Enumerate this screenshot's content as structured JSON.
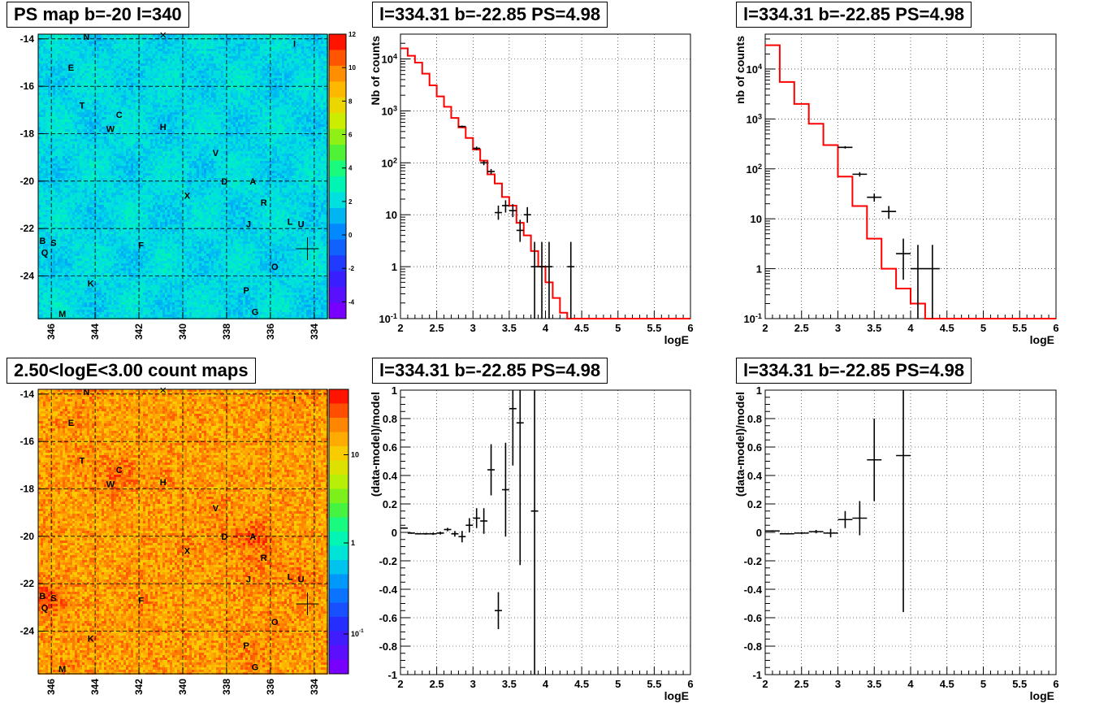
{
  "panels": {
    "map_top_title": "PS map b=-20 l=340",
    "map_bottom_title": "2.50<logE<3.00 count maps",
    "spec_left_title": "l=334.31 b=-22.85 PS=4.98",
    "spec_right_title": "l=334.31 b=-22.85 PS=4.98",
    "res_left_title": "l=334.31 b=-22.85 PS=4.98",
    "res_right_title": "l=334.31 b=-22.85 PS=4.98"
  },
  "maps": {
    "x_ticks": [
      "346",
      "344",
      "342",
      "340",
      "338",
      "336",
      "334"
    ],
    "y_ticks": [
      "-14",
      "-16",
      "-18",
      "-20",
      "-22",
      "-24"
    ],
    "top_colorbar_ticks": [
      "12",
      "10",
      "8",
      "6",
      "4",
      "2",
      "0",
      "-2",
      "-4"
    ],
    "bottom_colorbar_ticks": [
      "10",
      "1",
      "10-1"
    ],
    "sources": [
      {
        "name": "N",
        "l": 344.4,
        "b": -13.9
      },
      {
        "name": "I",
        "l": 334.9,
        "b": -14.2
      },
      {
        "name": "E",
        "l": 345.1,
        "b": -15.2
      },
      {
        "name": "T",
        "l": 344.6,
        "b": -16.8
      },
      {
        "name": "C",
        "l": 342.9,
        "b": -17.2
      },
      {
        "name": "W",
        "l": 343.3,
        "b": -17.8
      },
      {
        "name": "H",
        "l": 340.9,
        "b": -17.7
      },
      {
        "name": "V",
        "l": 338.5,
        "b": -18.8
      },
      {
        "name": "D",
        "l": 338.1,
        "b": -20.0
      },
      {
        "name": "A",
        "l": 336.8,
        "b": -20.0
      },
      {
        "name": "X",
        "l": 339.8,
        "b": -20.6
      },
      {
        "name": "R",
        "l": 336.3,
        "b": -20.9
      },
      {
        "name": "J",
        "l": 337.0,
        "b": -21.8
      },
      {
        "name": "L",
        "l": 335.1,
        "b": -21.7
      },
      {
        "name": "U",
        "l": 334.6,
        "b": -21.8
      },
      {
        "name": "B",
        "l": 346.4,
        "b": -22.5
      },
      {
        "name": "S",
        "l": 345.9,
        "b": -22.6
      },
      {
        "name": "F",
        "l": 341.9,
        "b": -22.7
      },
      {
        "name": "Q",
        "l": 346.3,
        "b": -23.0
      },
      {
        "name": "O",
        "l": 335.8,
        "b": -23.6
      },
      {
        "name": "K",
        "l": 344.2,
        "b": -24.3
      },
      {
        "name": "P",
        "l": 337.1,
        "b": -24.6
      },
      {
        "name": "G",
        "l": 336.7,
        "b": -25.5
      },
      {
        "name": "M",
        "l": 345.5,
        "b": -25.6
      }
    ]
  },
  "chart_data": [
    {
      "type": "heatmap",
      "title": "PS map b=-20 l=340",
      "xlabel": "l",
      "ylabel": "b",
      "xlim": [
        346.6,
        333.4
      ],
      "ylim": [
        -25.8,
        -13.8
      ],
      "zlim": [
        -5,
        12
      ],
      "colorbar_ticks": [
        12,
        10,
        8,
        6,
        4,
        2,
        0,
        -2,
        -4
      ],
      "marker": {
        "l": 334.31,
        "b": -22.85
      }
    },
    {
      "type": "bar",
      "subtype": "step-histogram-with-errorbars",
      "title": "l=334.31 b=-22.85 PS=4.98",
      "xlabel": "logE",
      "ylabel": "Nb of counts",
      "xlim": [
        2,
        6
      ],
      "ylim": [
        0.1,
        30000
      ],
      "yscale": "log",
      "x_ticks": [
        "2",
        "2.5",
        "3",
        "3.5",
        "4",
        "4.5",
        "5",
        "5.5",
        "6"
      ],
      "y_ticks": [
        "10-1",
        "1",
        "10",
        "102",
        "103",
        "104"
      ],
      "grid": true,
      "model_color": "#ff0000",
      "model_edges": [
        2,
        2.1,
        2.2,
        2.3,
        2.4,
        2.5,
        2.6,
        2.7,
        2.8,
        2.9,
        3.0,
        3.1,
        3.2,
        3.3,
        3.4,
        3.5,
        3.6,
        3.7,
        3.8,
        3.9,
        4.0,
        4.1,
        4.2,
        4.3,
        6.0
      ],
      "model_values": [
        16000,
        11500,
        8500,
        5200,
        3100,
        1900,
        1200,
        730,
        480,
        300,
        180,
        110,
        60,
        40,
        22,
        15,
        7,
        4,
        2,
        1,
        0.5,
        0.25,
        0.13,
        0.1
      ],
      "data_points": [
        {
          "x": 2.85,
          "y": 500,
          "xerr": 0.05,
          "ylo": 480,
          "yhi": 520
        },
        {
          "x": 3.05,
          "y": 190,
          "xerr": 0.05,
          "ylo": 175,
          "yhi": 205
        },
        {
          "x": 3.15,
          "y": 100,
          "xerr": 0.05,
          "ylo": 90,
          "yhi": 110
        },
        {
          "x": 3.25,
          "y": 68,
          "xerr": 0.05,
          "ylo": 60,
          "yhi": 76
        },
        {
          "x": 3.35,
          "y": 11,
          "xerr": 0.05,
          "ylo": 8,
          "yhi": 15
        },
        {
          "x": 3.45,
          "y": 15,
          "xerr": 0.05,
          "ylo": 11,
          "yhi": 19
        },
        {
          "x": 3.55,
          "y": 12,
          "xerr": 0.05,
          "ylo": 9,
          "yhi": 16
        },
        {
          "x": 3.65,
          "y": 5,
          "xerr": 0.05,
          "ylo": 3,
          "yhi": 8
        },
        {
          "x": 3.75,
          "y": 10,
          "xerr": 0.05,
          "ylo": 7,
          "yhi": 14
        },
        {
          "x": 3.85,
          "y": 1,
          "xerr": 0.05,
          "ylo": 0.1,
          "yhi": 3
        },
        {
          "x": 3.95,
          "y": 1,
          "xerr": 0.05,
          "ylo": 0.1,
          "yhi": 3
        },
        {
          "x": 4.05,
          "y": 1,
          "xerr": 0.05,
          "ylo": 0.1,
          "yhi": 3
        },
        {
          "x": 4.35,
          "y": 1,
          "xerr": 0.05,
          "ylo": 0.1,
          "yhi": 3
        }
      ]
    },
    {
      "type": "bar",
      "subtype": "step-histogram-with-errorbars",
      "title": "l=334.31 b=-22.85 PS=4.98",
      "xlabel": "logE",
      "ylabel": "nb of counts",
      "xlim": [
        2,
        6
      ],
      "ylim": [
        0.1,
        50000
      ],
      "yscale": "log",
      "x_ticks": [
        "2",
        "2.5",
        "3",
        "3.5",
        "4",
        "4.5",
        "5",
        "5.5",
        "6"
      ],
      "y_ticks": [
        "10-1",
        "1",
        "10",
        "102",
        "103",
        "104"
      ],
      "grid": true,
      "model_color": "#ff0000",
      "model_edges": [
        2,
        2.2,
        2.4,
        2.6,
        2.8,
        3.0,
        3.2,
        3.4,
        3.6,
        3.8,
        4.0,
        4.2,
        4.4,
        6.0
      ],
      "model_values": [
        30000,
        5500,
        2000,
        800,
        300,
        70,
        18,
        4,
        1,
        0.4,
        0.2,
        0.1,
        0.1
      ],
      "data_points": [
        {
          "x": 3.1,
          "y": 270,
          "xerr": 0.1,
          "ylo": 255,
          "yhi": 285
        },
        {
          "x": 3.3,
          "y": 78,
          "xerr": 0.1,
          "ylo": 70,
          "yhi": 86
        },
        {
          "x": 3.5,
          "y": 27,
          "xerr": 0.1,
          "ylo": 22,
          "yhi": 32
        },
        {
          "x": 3.7,
          "y": 14,
          "xerr": 0.1,
          "ylo": 10,
          "yhi": 18
        },
        {
          "x": 3.9,
          "y": 2,
          "xerr": 0.1,
          "ylo": 0.6,
          "yhi": 4
        },
        {
          "x": 4.1,
          "y": 1,
          "xerr": 0.1,
          "ylo": 0.1,
          "yhi": 3
        },
        {
          "x": 4.3,
          "y": 1,
          "xerr": 0.1,
          "ylo": 0.1,
          "yhi": 3
        }
      ]
    },
    {
      "type": "heatmap",
      "title": "2.50<logE<3.00 count maps",
      "xlabel": "l",
      "ylabel": "b",
      "xlim": [
        346.6,
        333.4
      ],
      "ylim": [
        -25.8,
        -13.8
      ],
      "zscale": "log",
      "colorbar_ticks": [
        "10",
        "1",
        "10-1"
      ],
      "marker": {
        "l": 334.31,
        "b": -22.85
      }
    },
    {
      "type": "scatter",
      "subtype": "errorbars",
      "title": "l=334.31 b=-22.85 PS=4.98",
      "xlabel": "logE",
      "ylabel": "(data-model)/model",
      "xlim": [
        2,
        6
      ],
      "ylim": [
        -1,
        1
      ],
      "x_ticks": [
        "2",
        "2.5",
        "3",
        "3.5",
        "4",
        "4.5",
        "5",
        "5.5",
        "6"
      ],
      "y_ticks": [
        "-1",
        "-0.8",
        "-0.6",
        "-0.4",
        "-0.2",
        "0",
        "0.2",
        "0.4",
        "0.6",
        "0.8",
        "1"
      ],
      "grid": true,
      "points": [
        {
          "x": 2.05,
          "y": 0.03,
          "xerr": 0.05,
          "yerr": 0.005
        },
        {
          "x": 2.15,
          "y": -0.005,
          "xerr": 0.05,
          "yerr": 0.005
        },
        {
          "x": 2.25,
          "y": -0.01,
          "xerr": 0.05,
          "yerr": 0.005
        },
        {
          "x": 2.35,
          "y": -0.01,
          "xerr": 0.05,
          "yerr": 0.006
        },
        {
          "x": 2.45,
          "y": -0.01,
          "xerr": 0.05,
          "yerr": 0.008
        },
        {
          "x": 2.55,
          "y": -0.005,
          "xerr": 0.05,
          "yerr": 0.01
        },
        {
          "x": 2.65,
          "y": 0.02,
          "xerr": 0.05,
          "yerr": 0.012
        },
        {
          "x": 2.75,
          "y": -0.01,
          "xerr": 0.05,
          "yerr": 0.02
        },
        {
          "x": 2.85,
          "y": -0.03,
          "xerr": 0.05,
          "yerr": 0.04
        },
        {
          "x": 2.95,
          "y": 0.05,
          "xerr": 0.05,
          "yerr": 0.05
        },
        {
          "x": 3.05,
          "y": 0.1,
          "xerr": 0.05,
          "yerr": 0.07
        },
        {
          "x": 3.15,
          "y": 0.08,
          "xerr": 0.05,
          "yerr": 0.09
        },
        {
          "x": 3.25,
          "y": 0.44,
          "xerr": 0.05,
          "yerr": 0.18
        },
        {
          "x": 3.35,
          "y": -0.55,
          "xerr": 0.05,
          "yerr": 0.13
        },
        {
          "x": 3.45,
          "y": 0.3,
          "xerr": 0.05,
          "yerr": 0.33
        },
        {
          "x": 3.55,
          "y": 0.87,
          "xerr": 0.05,
          "yerr": 0.4
        },
        {
          "x": 3.65,
          "y": 0.77,
          "xerr": 0.05,
          "yerr": 1.0
        },
        {
          "x": 3.85,
          "y": 0.15,
          "xerr": 0.05,
          "yerr": 1.15
        }
      ]
    },
    {
      "type": "scatter",
      "subtype": "errorbars",
      "title": "l=334.31 b=-22.85 PS=4.98",
      "xlabel": "logE",
      "ylabel": "(data-model)/model",
      "xlim": [
        2,
        6
      ],
      "ylim": [
        -1,
        1
      ],
      "x_ticks": [
        "2",
        "2.5",
        "3",
        "3.5",
        "4",
        "4.5",
        "5",
        "5.5",
        "6"
      ],
      "y_ticks": [
        "-1",
        "-0.8",
        "-0.6",
        "-0.4",
        "-0.2",
        "0",
        "0.2",
        "0.4",
        "0.6",
        "0.8",
        "1"
      ],
      "grid": true,
      "points": [
        {
          "x": 2.1,
          "y": 0.01,
          "xerr": 0.1,
          "yerr": 0.005
        },
        {
          "x": 2.3,
          "y": -0.01,
          "xerr": 0.1,
          "yerr": 0.005
        },
        {
          "x": 2.5,
          "y": -0.005,
          "xerr": 0.1,
          "yerr": 0.008
        },
        {
          "x": 2.7,
          "y": 0.005,
          "xerr": 0.1,
          "yerr": 0.012
        },
        {
          "x": 2.9,
          "y": -0.005,
          "xerr": 0.1,
          "yerr": 0.03
        },
        {
          "x": 3.1,
          "y": 0.09,
          "xerr": 0.1,
          "yerr": 0.06
        },
        {
          "x": 3.3,
          "y": 0.1,
          "xerr": 0.1,
          "yerr": 0.12
        },
        {
          "x": 3.5,
          "y": 0.51,
          "xerr": 0.1,
          "yerr": 0.29
        },
        {
          "x": 3.9,
          "y": 0.54,
          "xerr": 0.1,
          "yerr": 1.1
        }
      ]
    }
  ]
}
